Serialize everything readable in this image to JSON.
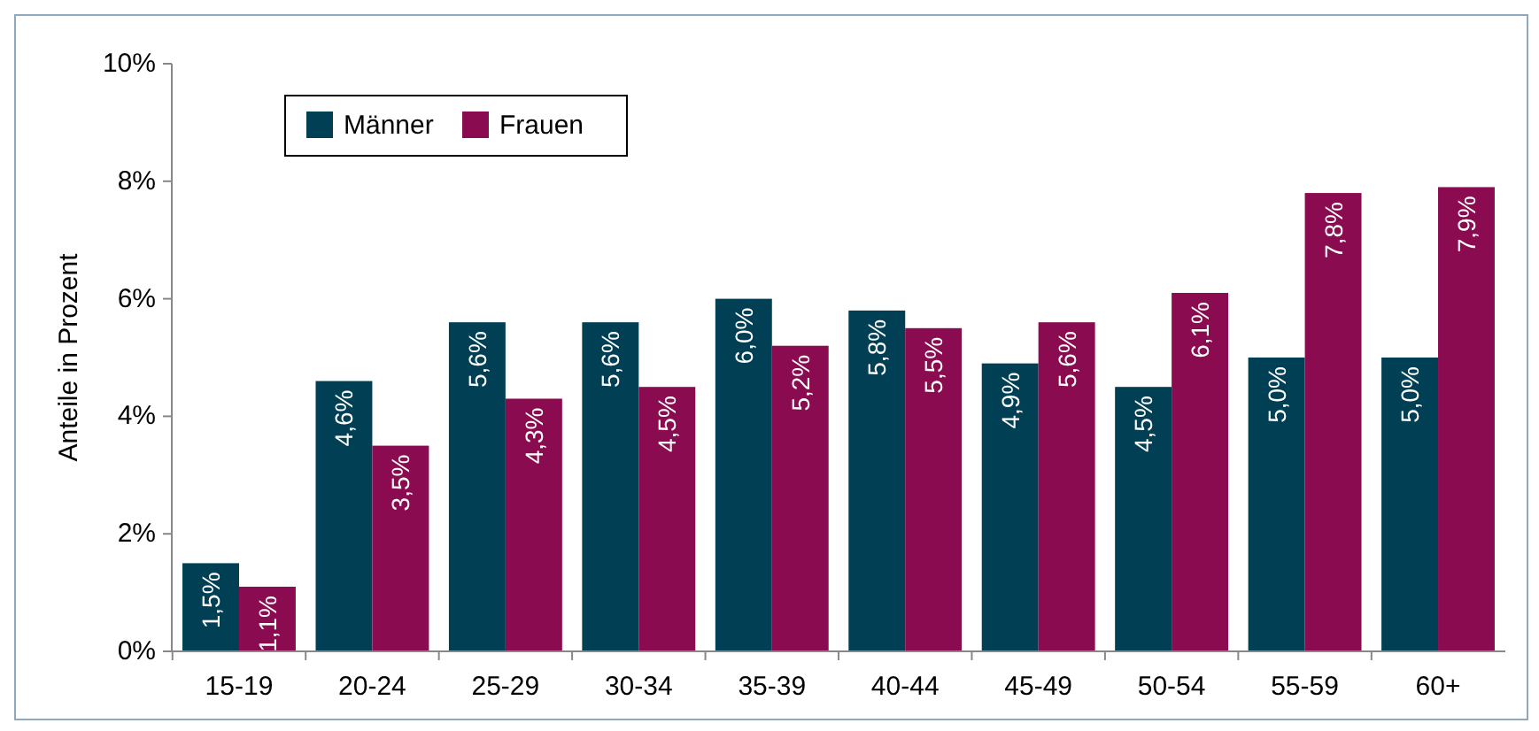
{
  "chart_data": {
    "type": "bar",
    "ylabel": "Anteile in Prozent",
    "categories": [
      "15-19",
      "20-24",
      "25-29",
      "30-34",
      "35-39",
      "40-44",
      "45-49",
      "50-54",
      "55-59",
      "60+"
    ],
    "series": [
      {
        "name": "Männer",
        "color": "#003f54",
        "values": [
          1.5,
          4.6,
          5.6,
          5.6,
          6.0,
          5.8,
          4.9,
          4.5,
          5.0,
          5.0
        ],
        "value_labels": [
          "1,5%",
          "4,6%",
          "5,6%",
          "5,6%",
          "6,0%",
          "5,8%",
          "4,9%",
          "4,5%",
          "5,0%",
          "5,0%"
        ]
      },
      {
        "name": "Frauen",
        "color": "#8b0b50",
        "values": [
          1.1,
          3.5,
          4.3,
          4.5,
          5.2,
          5.5,
          5.6,
          6.1,
          7.8,
          7.9
        ],
        "value_labels": [
          "1,1%",
          "3,5%",
          "4,3%",
          "4,5%",
          "5,2%",
          "5,5%",
          "5,6%",
          "6,1%",
          "7,8%",
          "7,9%"
        ]
      }
    ],
    "ylim": [
      0,
      10
    ],
    "yticks": [
      {
        "value": 0,
        "label": "0%"
      },
      {
        "value": 2,
        "label": "2%"
      },
      {
        "value": 4,
        "label": "4%"
      },
      {
        "value": 6,
        "label": "6%"
      },
      {
        "value": 8,
        "label": "8%"
      },
      {
        "value": 10,
        "label": "10%"
      }
    ],
    "legend": "top left",
    "grid": false
  }
}
